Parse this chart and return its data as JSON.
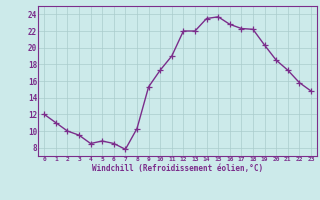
{
  "x": [
    0,
    1,
    2,
    3,
    4,
    5,
    6,
    7,
    8,
    9,
    10,
    11,
    12,
    13,
    14,
    15,
    16,
    17,
    18,
    19,
    20,
    21,
    22,
    23
  ],
  "y": [
    12,
    11,
    10,
    9.5,
    8.5,
    8.8,
    8.5,
    7.8,
    10.3,
    15.3,
    17.3,
    19.0,
    22.0,
    22.0,
    23.5,
    23.7,
    22.8,
    22.3,
    22.2,
    20.3,
    18.5,
    17.3,
    15.8,
    14.8
  ],
  "line_color": "#7b2d8b",
  "marker": "+",
  "marker_size": 4,
  "linewidth": 1.0,
  "bg_color": "#cceaea",
  "grid_color": "#aacccc",
  "xlabel": "Windchill (Refroidissement éolien,°C)",
  "xlabel_color": "#7b2d8b",
  "tick_color": "#7b2d8b",
  "ylim": [
    7,
    25
  ],
  "yticks": [
    8,
    10,
    12,
    14,
    16,
    18,
    20,
    22,
    24
  ],
  "xticks": [
    0,
    1,
    2,
    3,
    4,
    5,
    6,
    7,
    8,
    9,
    10,
    11,
    12,
    13,
    14,
    15,
    16,
    17,
    18,
    19,
    20,
    21,
    22,
    23
  ],
  "xtick_labels": [
    "0",
    "1",
    "2",
    "3",
    "4",
    "5",
    "6",
    "7",
    "8",
    "9",
    "10",
    "11",
    "12",
    "13",
    "14",
    "15",
    "16",
    "17",
    "18",
    "19",
    "20",
    "21",
    "22",
    "23"
  ],
  "spine_color": "#7b2d8b"
}
